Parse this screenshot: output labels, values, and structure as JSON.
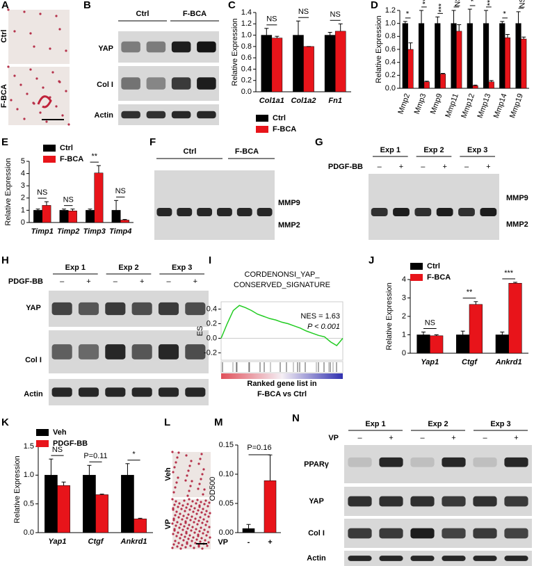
{
  "panel_letters": [
    "A",
    "B",
    "C",
    "D",
    "E",
    "F",
    "G",
    "H",
    "I",
    "J",
    "K",
    "L",
    "M",
    "N"
  ],
  "panel_a": {
    "labels": [
      "Ctrl",
      "F-BCA"
    ]
  },
  "panel_b": {
    "groups": [
      "Ctrl",
      "F-BCA"
    ],
    "rows": [
      "YAP",
      "Col I",
      "Actin"
    ]
  },
  "panel_f": {
    "groups": [
      "Ctrl",
      "F-BCA"
    ],
    "bands": [
      "MMP9",
      "MMP2"
    ]
  },
  "panel_g": {
    "treatment": "PDGF-BB",
    "experiments": [
      "Exp 1",
      "Exp 2",
      "Exp 3"
    ],
    "signs": [
      "–",
      "+"
    ],
    "bands": [
      "MMP9",
      "MMP2"
    ]
  },
  "panel_h": {
    "treatment": "PDGF-BB",
    "experiments": [
      "Exp 1",
      "Exp 2",
      "Exp 3"
    ],
    "signs": [
      "–",
      "+"
    ],
    "rows": [
      "YAP",
      "Col I",
      "Actin"
    ]
  },
  "panel_l": {
    "labels": [
      "Veh",
      "VP"
    ]
  },
  "panel_n": {
    "treatment": "VP",
    "experiments": [
      "Exp 1",
      "Exp 2",
      "Exp 3"
    ],
    "signs": [
      "–",
      "+"
    ],
    "rows": [
      "PPARγ",
      "YAP",
      "Col I",
      "Actin"
    ]
  },
  "chart_data": [
    {
      "type": "bar",
      "ylabel": "Relative Expression",
      "categories": [
        "Col1a1",
        "Col1a2",
        "Fn1"
      ],
      "series": [
        {
          "name": "Ctrl",
          "color": "#000000",
          "values": [
            1,
            1,
            1
          ],
          "errors": [
            0.12,
            0.25,
            0.05
          ]
        },
        {
          "name": "F-BCA",
          "color": "#e8141a",
          "values": [
            0.95,
            0.8,
            1.07
          ],
          "errors": [
            0.03,
            0,
            0.13
          ]
        }
      ],
      "significance": [
        "NS",
        "NS",
        "NS"
      ],
      "ylim": [
        0,
        1.4
      ],
      "yticks": [
        {
          "value": 0,
          "label": "0.0"
        },
        0.2,
        0.4,
        0.6,
        0.8,
        {
          "value": 1,
          "label": "1.0"
        },
        1.2,
        1.4
      ],
      "legend": "bottom"
    },
    {
      "type": "bar",
      "ylabel": "Relative Expression",
      "categories": [
        "Mmp2",
        "Mmp3",
        "Mmp9",
        "Mmp11",
        "Mmp12",
        "Mmp13",
        "Mmp14",
        "Mmp19"
      ],
      "series": [
        {
          "color": "#000000",
          "values": [
            1,
            1,
            1,
            1,
            1,
            1,
            1,
            1
          ],
          "errors": [
            0.03,
            0.2,
            0.1,
            0.2,
            0.22,
            0.2,
            0.03,
            0.18
          ]
        },
        {
          "color": "#e8141a",
          "values": [
            0.6,
            0.1,
            0.22,
            0.88,
            0.04,
            0.1,
            0.78,
            0.76
          ],
          "errors": [
            0.1,
            0.01,
            0.01,
            0.1,
            0.01,
            0.02,
            0.05,
            0.03
          ]
        }
      ],
      "significance": [
        "*",
        "**",
        "***",
        "NS",
        "*",
        "***",
        "*",
        "NS"
      ],
      "ylim": [
        0,
        1.2
      ],
      "yticks": [
        {
          "value": 0,
          "label": "0.0"
        },
        0.2,
        0.4,
        0.6,
        0.8,
        {
          "value": 1,
          "label": "1.0"
        },
        1.2
      ]
    },
    {
      "type": "bar",
      "ylabel": "Relative Expression",
      "categories": [
        "Timp1",
        "Timp2",
        "Timp3",
        "Timp4"
      ],
      "series": [
        {
          "name": "Ctrl",
          "color": "#000000",
          "values": [
            1,
            1,
            1,
            1
          ],
          "errors": [
            0.1,
            0.1,
            0.1,
            0.8
          ]
        },
        {
          "name": "F-BCA",
          "color": "#e8141a",
          "values": [
            1.4,
            0.95,
            4.05,
            0.2
          ],
          "errors": [
            0.3,
            0.15,
            0.6,
            0.05
          ]
        }
      ],
      "significance": [
        "NS",
        "NS",
        "**",
        "NS"
      ],
      "ylim": [
        0,
        5
      ],
      "yticks": [
        0,
        1,
        2,
        3,
        4,
        5
      ],
      "legend": "top-left"
    },
    {
      "type": "line",
      "title": [
        "CORDENONSI_YAP_",
        "CONSERVED_SIGNATURE"
      ],
      "ylabel": "ES",
      "annotations": [
        "NES = 1.63",
        "P < 0.001"
      ],
      "xlabel": [
        "Ranked gene list in",
        "F-BCA vs Ctrl"
      ],
      "x": [
        0,
        1,
        2,
        3,
        4,
        5,
        6,
        7,
        8,
        9,
        10,
        11,
        12,
        13,
        14,
        15,
        16,
        17,
        18,
        19,
        20
      ],
      "values": [
        0,
        0.2,
        0.38,
        0.45,
        0.42,
        0.38,
        0.33,
        0.3,
        0.27,
        0.25,
        0.22,
        0.2,
        0.17,
        0.14,
        0.1,
        0.07,
        0.04,
        0.02,
        -0.05,
        -0.1,
        0
      ],
      "color": "#22cc22",
      "xlim": [
        0,
        20
      ],
      "ylim": [
        -0.3,
        0.5
      ],
      "yticks": [
        -0.2,
        {
          "value": 0,
          "label": "0.0"
        },
        0.2,
        0.4
      ]
    },
    {
      "type": "bar",
      "ylabel": "Relative Expression",
      "categories": [
        "Yap1",
        "Ctgf",
        "Ankrd1"
      ],
      "series": [
        {
          "name": "Ctrl",
          "color": "#000000",
          "values": [
            1,
            1,
            1
          ],
          "errors": [
            0.15,
            0.2,
            0.15
          ]
        },
        {
          "name": "F-BCA",
          "color": "#e8141a",
          "values": [
            0.95,
            2.65,
            3.8
          ],
          "errors": [
            0.05,
            0.15,
            0.05
          ]
        }
      ],
      "significance": [
        "NS",
        "**",
        "***"
      ],
      "ylim": [
        0,
        4
      ],
      "yticks": [
        0,
        1,
        2,
        3,
        4
      ],
      "legend": "top-left"
    },
    {
      "type": "bar",
      "ylabel": "Relative Expression",
      "categories": [
        "Yap1",
        "Ctgf",
        "Ankrd1"
      ],
      "series": [
        {
          "name": "Veh",
          "color": "#000000",
          "values": [
            1,
            1,
            1
          ],
          "errors": [
            0.28,
            0.17,
            0.2
          ]
        },
        {
          "name": "PDGF-BB",
          "color": "#e8141a",
          "values": [
            0.82,
            0.66,
            0.24
          ],
          "errors": [
            0.06,
            0.01,
            0.01
          ]
        }
      ],
      "significance": [
        "NS",
        "P=0.11",
        "*"
      ],
      "ylim": [
        0,
        1.5
      ],
      "yticks": [
        {
          "value": 0,
          "label": "0.0"
        },
        0.5,
        {
          "value": 1,
          "label": "1.0"
        },
        1.5
      ],
      "legend": "top-left"
    },
    {
      "type": "single",
      "ylabel": "OD500",
      "xlabel": "VP",
      "categories": [
        "-",
        "+"
      ],
      "values": [
        0.007,
        0.089
      ],
      "errors": [
        0.007,
        0.044
      ],
      "colors": [
        "#000000",
        "#e8141a"
      ],
      "annotation": "P=0.16",
      "ylim": [
        0,
        0.15
      ],
      "yticks": [
        {
          "value": 0,
          "label": "0.00"
        },
        0.05,
        {
          "value": 0.1,
          "label": "0.10"
        },
        0.15
      ]
    }
  ]
}
